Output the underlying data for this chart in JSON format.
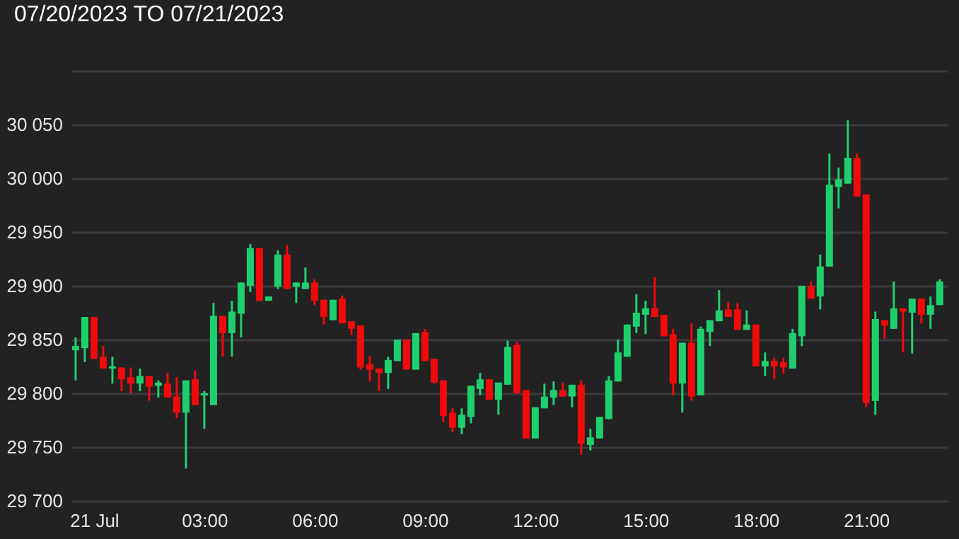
{
  "chart_data": {
    "type": "candlestick",
    "title": "07/20/2023 TO 07/21/2023",
    "x": [
      "2023-07-20T23:30",
      "2023-07-20T23:45",
      "2023-07-21T00:00",
      "2023-07-21T00:15",
      "2023-07-21T00:30",
      "2023-07-21T00:45",
      "2023-07-21T01:00",
      "2023-07-21T01:15",
      "2023-07-21T01:30",
      "2023-07-21T01:45",
      "2023-07-21T02:00",
      "2023-07-21T02:15",
      "2023-07-21T02:30",
      "2023-07-21T02:45",
      "2023-07-21T03:00",
      "2023-07-21T03:15",
      "2023-07-21T03:30",
      "2023-07-21T03:45",
      "2023-07-21T04:00",
      "2023-07-21T04:15",
      "2023-07-21T04:30",
      "2023-07-21T04:45",
      "2023-07-21T05:00",
      "2023-07-21T05:15",
      "2023-07-21T05:30",
      "2023-07-21T05:45",
      "2023-07-21T06:00",
      "2023-07-21T06:15",
      "2023-07-21T06:30",
      "2023-07-21T06:45",
      "2023-07-21T07:00",
      "2023-07-21T07:15",
      "2023-07-21T07:30",
      "2023-07-21T07:45",
      "2023-07-21T08:00",
      "2023-07-21T08:15",
      "2023-07-21T08:30",
      "2023-07-21T08:45",
      "2023-07-21T09:00",
      "2023-07-21T09:15",
      "2023-07-21T09:30",
      "2023-07-21T09:45",
      "2023-07-21T10:00",
      "2023-07-21T10:15",
      "2023-07-21T10:30",
      "2023-07-21T10:45",
      "2023-07-21T11:00",
      "2023-07-21T11:15",
      "2023-07-21T11:30",
      "2023-07-21T11:45",
      "2023-07-21T12:00",
      "2023-07-21T12:15",
      "2023-07-21T12:30",
      "2023-07-21T12:45",
      "2023-07-21T13:00",
      "2023-07-21T13:15",
      "2023-07-21T13:30",
      "2023-07-21T13:45",
      "2023-07-21T14:00",
      "2023-07-21T14:15",
      "2023-07-21T14:30",
      "2023-07-21T14:45",
      "2023-07-21T15:00",
      "2023-07-21T15:15",
      "2023-07-21T15:30",
      "2023-07-21T15:45",
      "2023-07-21T16:00",
      "2023-07-21T16:15",
      "2023-07-21T16:30",
      "2023-07-21T16:45",
      "2023-07-21T17:00",
      "2023-07-21T17:15",
      "2023-07-21T17:30",
      "2023-07-21T17:45",
      "2023-07-21T18:00",
      "2023-07-21T18:15",
      "2023-07-21T18:30",
      "2023-07-21T18:45",
      "2023-07-21T19:00",
      "2023-07-21T19:15",
      "2023-07-21T19:30",
      "2023-07-21T19:45",
      "2023-07-21T20:00",
      "2023-07-21T20:15",
      "2023-07-21T20:30",
      "2023-07-21T20:45",
      "2023-07-21T21:00",
      "2023-07-21T21:15",
      "2023-07-21T21:30",
      "2023-07-21T21:45",
      "2023-07-21T22:00",
      "2023-07-21T22:15",
      "2023-07-21T22:30",
      "2023-07-21T22:45",
      "2023-07-21T23:00"
    ],
    "ohlc": [
      [
        29840,
        29852,
        29812,
        29844
      ],
      [
        29842,
        29871,
        29829,
        29871
      ],
      [
        29871,
        29871,
        29832,
        29832
      ],
      [
        29834,
        29844,
        29823,
        29823
      ],
      [
        29823,
        29834,
        29809,
        29825
      ],
      [
        29824,
        29824,
        29802,
        29813
      ],
      [
        29815,
        29824,
        29800,
        29809
      ],
      [
        29809,
        29823,
        29802,
        29816
      ],
      [
        29816,
        29816,
        29793,
        29806
      ],
      [
        29807,
        29812,
        29796,
        29810
      ],
      [
        29809,
        29819,
        29796,
        29796
      ],
      [
        29797,
        29815,
        29777,
        29782
      ],
      [
        29782,
        29812,
        29730,
        29812
      ],
      [
        29813,
        29821,
        29789,
        29789
      ],
      [
        29798,
        29802,
        29767,
        29800
      ],
      [
        29789,
        29884,
        29789,
        29872
      ],
      [
        29872,
        29872,
        29834,
        29856
      ],
      [
        29856,
        29886,
        29834,
        29876
      ],
      [
        29874,
        29903,
        29852,
        29903
      ],
      [
        29900,
        29939,
        29894,
        29935
      ],
      [
        29935,
        29935,
        29886,
        29886
      ],
      [
        29886,
        29890,
        29886,
        29890
      ],
      [
        29899,
        29933,
        29897,
        29929
      ],
      [
        29929,
        29938,
        29897,
        29897
      ],
      [
        29899,
        29903,
        29884,
        29903
      ],
      [
        29897,
        29917,
        29897,
        29903
      ],
      [
        29903,
        29906,
        29882,
        29886
      ],
      [
        29887,
        29887,
        29864,
        29871
      ],
      [
        29868,
        29887,
        29868,
        29887
      ],
      [
        29888,
        29891,
        29865,
        29865
      ],
      [
        29867,
        29867,
        29854,
        29860
      ],
      [
        29863,
        29863,
        29822,
        29824
      ],
      [
        29827,
        29835,
        29811,
        29822
      ],
      [
        29823,
        29823,
        29802,
        29819
      ],
      [
        29819,
        29834,
        29804,
        29831
      ],
      [
        29830,
        29850,
        29830,
        29850
      ],
      [
        29850,
        29850,
        29822,
        29822
      ],
      [
        29822,
        29856,
        29822,
        29856
      ],
      [
        29857,
        29860,
        29830,
        29830
      ],
      [
        29832,
        29832,
        29809,
        29810
      ],
      [
        29812,
        29812,
        29773,
        29779
      ],
      [
        29782,
        29786,
        29764,
        29768
      ],
      [
        29768,
        29786,
        29762,
        29780
      ],
      [
        29778,
        29807,
        29772,
        29807
      ],
      [
        29804,
        29819,
        29798,
        29813
      ],
      [
        29813,
        29813,
        29794,
        29794
      ],
      [
        29794,
        29810,
        29780,
        29810
      ],
      [
        29808,
        29849,
        29808,
        29843
      ],
      [
        29845,
        29848,
        29800,
        29800
      ],
      [
        29803,
        29803,
        29758,
        29758
      ],
      [
        29758,
        29787,
        29758,
        29787
      ],
      [
        29786,
        29809,
        29786,
        29797
      ],
      [
        29796,
        29811,
        29789,
        29803
      ],
      [
        29803,
        29810,
        29797,
        29797
      ],
      [
        29797,
        29808,
        29787,
        29808
      ],
      [
        29808,
        29812,
        29743,
        29753
      ],
      [
        29752,
        29767,
        29747,
        29759
      ],
      [
        29758,
        29778,
        29758,
        29778
      ],
      [
        29776,
        29816,
        29776,
        29812
      ],
      [
        29811,
        29850,
        29811,
        29838
      ],
      [
        29834,
        29864,
        29834,
        29864
      ],
      [
        29862,
        29892,
        29856,
        29875
      ],
      [
        29873,
        29886,
        29855,
        29879
      ],
      [
        29879,
        29908,
        29871,
        29871
      ],
      [
        29873,
        29873,
        29853,
        29853
      ],
      [
        29855,
        29860,
        29798,
        29809
      ],
      [
        29809,
        29847,
        29782,
        29847
      ],
      [
        29847,
        29865,
        29793,
        29797
      ],
      [
        29798,
        29862,
        29798,
        29860
      ],
      [
        29857,
        29868,
        29844,
        29868
      ],
      [
        29867,
        29896,
        29867,
        29877
      ],
      [
        29878,
        29885,
        29871,
        29871
      ],
      [
        29878,
        29884,
        29859,
        29859
      ],
      [
        29859,
        29877,
        29859,
        29864
      ],
      [
        29864,
        29864,
        29825,
        29825
      ],
      [
        29825,
        29838,
        29816,
        29830
      ],
      [
        29830,
        29833,
        29813,
        29825
      ],
      [
        29829,
        29833,
        29818,
        29824
      ],
      [
        29823,
        29860,
        29823,
        29856
      ],
      [
        29853,
        29900,
        29844,
        29900
      ],
      [
        29900,
        29904,
        29888,
        29888
      ],
      [
        29890,
        29929,
        29878,
        29918
      ],
      [
        29918,
        30023,
        29918,
        29994
      ],
      [
        29992,
        30010,
        29972,
        29999
      ],
      [
        29995,
        30054,
        29995,
        30019
      ],
      [
        30019,
        30023,
        29983,
        29983
      ],
      [
        29985,
        29985,
        29787,
        29791
      ],
      [
        29793,
        29876,
        29780,
        29869
      ],
      [
        29868,
        29868,
        29851,
        29863
      ],
      [
        29860,
        29904,
        29860,
        29879
      ],
      [
        29879,
        29879,
        29838,
        29876
      ],
      [
        29875,
        29888,
        29837,
        29888
      ],
      [
        29888,
        29888,
        29865,
        29873
      ],
      [
        29873,
        29890,
        29860,
        29882
      ],
      [
        29882,
        29906,
        29882,
        29904
      ]
    ],
    "colors": [
      "#1fcf6e",
      "#1fcf6e",
      "#f00a0a",
      "#f00a0a",
      "#1fcf6e",
      "#f00a0a",
      "#f00a0a",
      "#1fcf6e",
      "#f00a0a",
      "#1fcf6e",
      "#f00a0a",
      "#f00a0a",
      "#1fcf6e",
      "#f00a0a",
      "#1fcf6e",
      "#1fcf6e",
      "#f00a0a",
      "#1fcf6e",
      "#1fcf6e",
      "#1fcf6e",
      "#f00a0a",
      "#1fcf6e",
      "#1fcf6e",
      "#f00a0a",
      "#1fcf6e",
      "#1fcf6e",
      "#f00a0a",
      "#f00a0a",
      "#1fcf6e",
      "#f00a0a",
      "#f00a0a",
      "#f00a0a",
      "#f00a0a",
      "#f00a0a",
      "#1fcf6e",
      "#1fcf6e",
      "#f00a0a",
      "#1fcf6e",
      "#f00a0a",
      "#f00a0a",
      "#f00a0a",
      "#f00a0a",
      "#1fcf6e",
      "#1fcf6e",
      "#1fcf6e",
      "#f00a0a",
      "#1fcf6e",
      "#1fcf6e",
      "#f00a0a",
      "#f00a0a",
      "#1fcf6e",
      "#1fcf6e",
      "#1fcf6e",
      "#f00a0a",
      "#1fcf6e",
      "#f00a0a",
      "#1fcf6e",
      "#1fcf6e",
      "#1fcf6e",
      "#1fcf6e",
      "#1fcf6e",
      "#1fcf6e",
      "#1fcf6e",
      "#f00a0a",
      "#f00a0a",
      "#f00a0a",
      "#1fcf6e",
      "#f00a0a",
      "#1fcf6e",
      "#1fcf6e",
      "#1fcf6e",
      "#f00a0a",
      "#f00a0a",
      "#1fcf6e",
      "#f00a0a",
      "#1fcf6e",
      "#f00a0a",
      "#f00a0a",
      "#1fcf6e",
      "#1fcf6e",
      "#f00a0a",
      "#1fcf6e",
      "#1fcf6e",
      "#1fcf6e",
      "#1fcf6e",
      "#f00a0a",
      "#f00a0a",
      "#1fcf6e",
      "#f00a0a",
      "#1fcf6e",
      "#f00a0a",
      "#1fcf6e",
      "#f00a0a",
      "#1fcf6e",
      "#1fcf6e"
    ],
    "xlim": [
      "2023-07-20T23:22",
      "2023-07-21T23:13"
    ],
    "xticks": [
      {
        "value": "2023-07-21T00:00",
        "label": "21 Jul"
      },
      {
        "value": "2023-07-21T03:00",
        "label": "03:00"
      },
      {
        "value": "2023-07-21T06:00",
        "label": "06:00"
      },
      {
        "value": "2023-07-21T09:00",
        "label": "09:00"
      },
      {
        "value": "2023-07-21T12:00",
        "label": "12:00"
      },
      {
        "value": "2023-07-21T15:00",
        "label": "15:00"
      },
      {
        "value": "2023-07-21T18:00",
        "label": "18:00"
      },
      {
        "value": "2023-07-21T21:00",
        "label": "21:00"
      }
    ],
    "ylim": [
      29700,
      30100
    ],
    "yticks": [
      {
        "value": 29700,
        "label": "29 700"
      },
      {
        "value": 29750,
        "label": "29 750"
      },
      {
        "value": 29800,
        "label": "29 800"
      },
      {
        "value": 29850,
        "label": "29 850"
      },
      {
        "value": 29900,
        "label": "29 900"
      },
      {
        "value": 29950,
        "label": "29 950"
      },
      {
        "value": 30000,
        "label": "30 000"
      },
      {
        "value": 30050,
        "label": "30 050"
      },
      {
        "value": 30100,
        "label": null
      }
    ],
    "grid": "y"
  }
}
